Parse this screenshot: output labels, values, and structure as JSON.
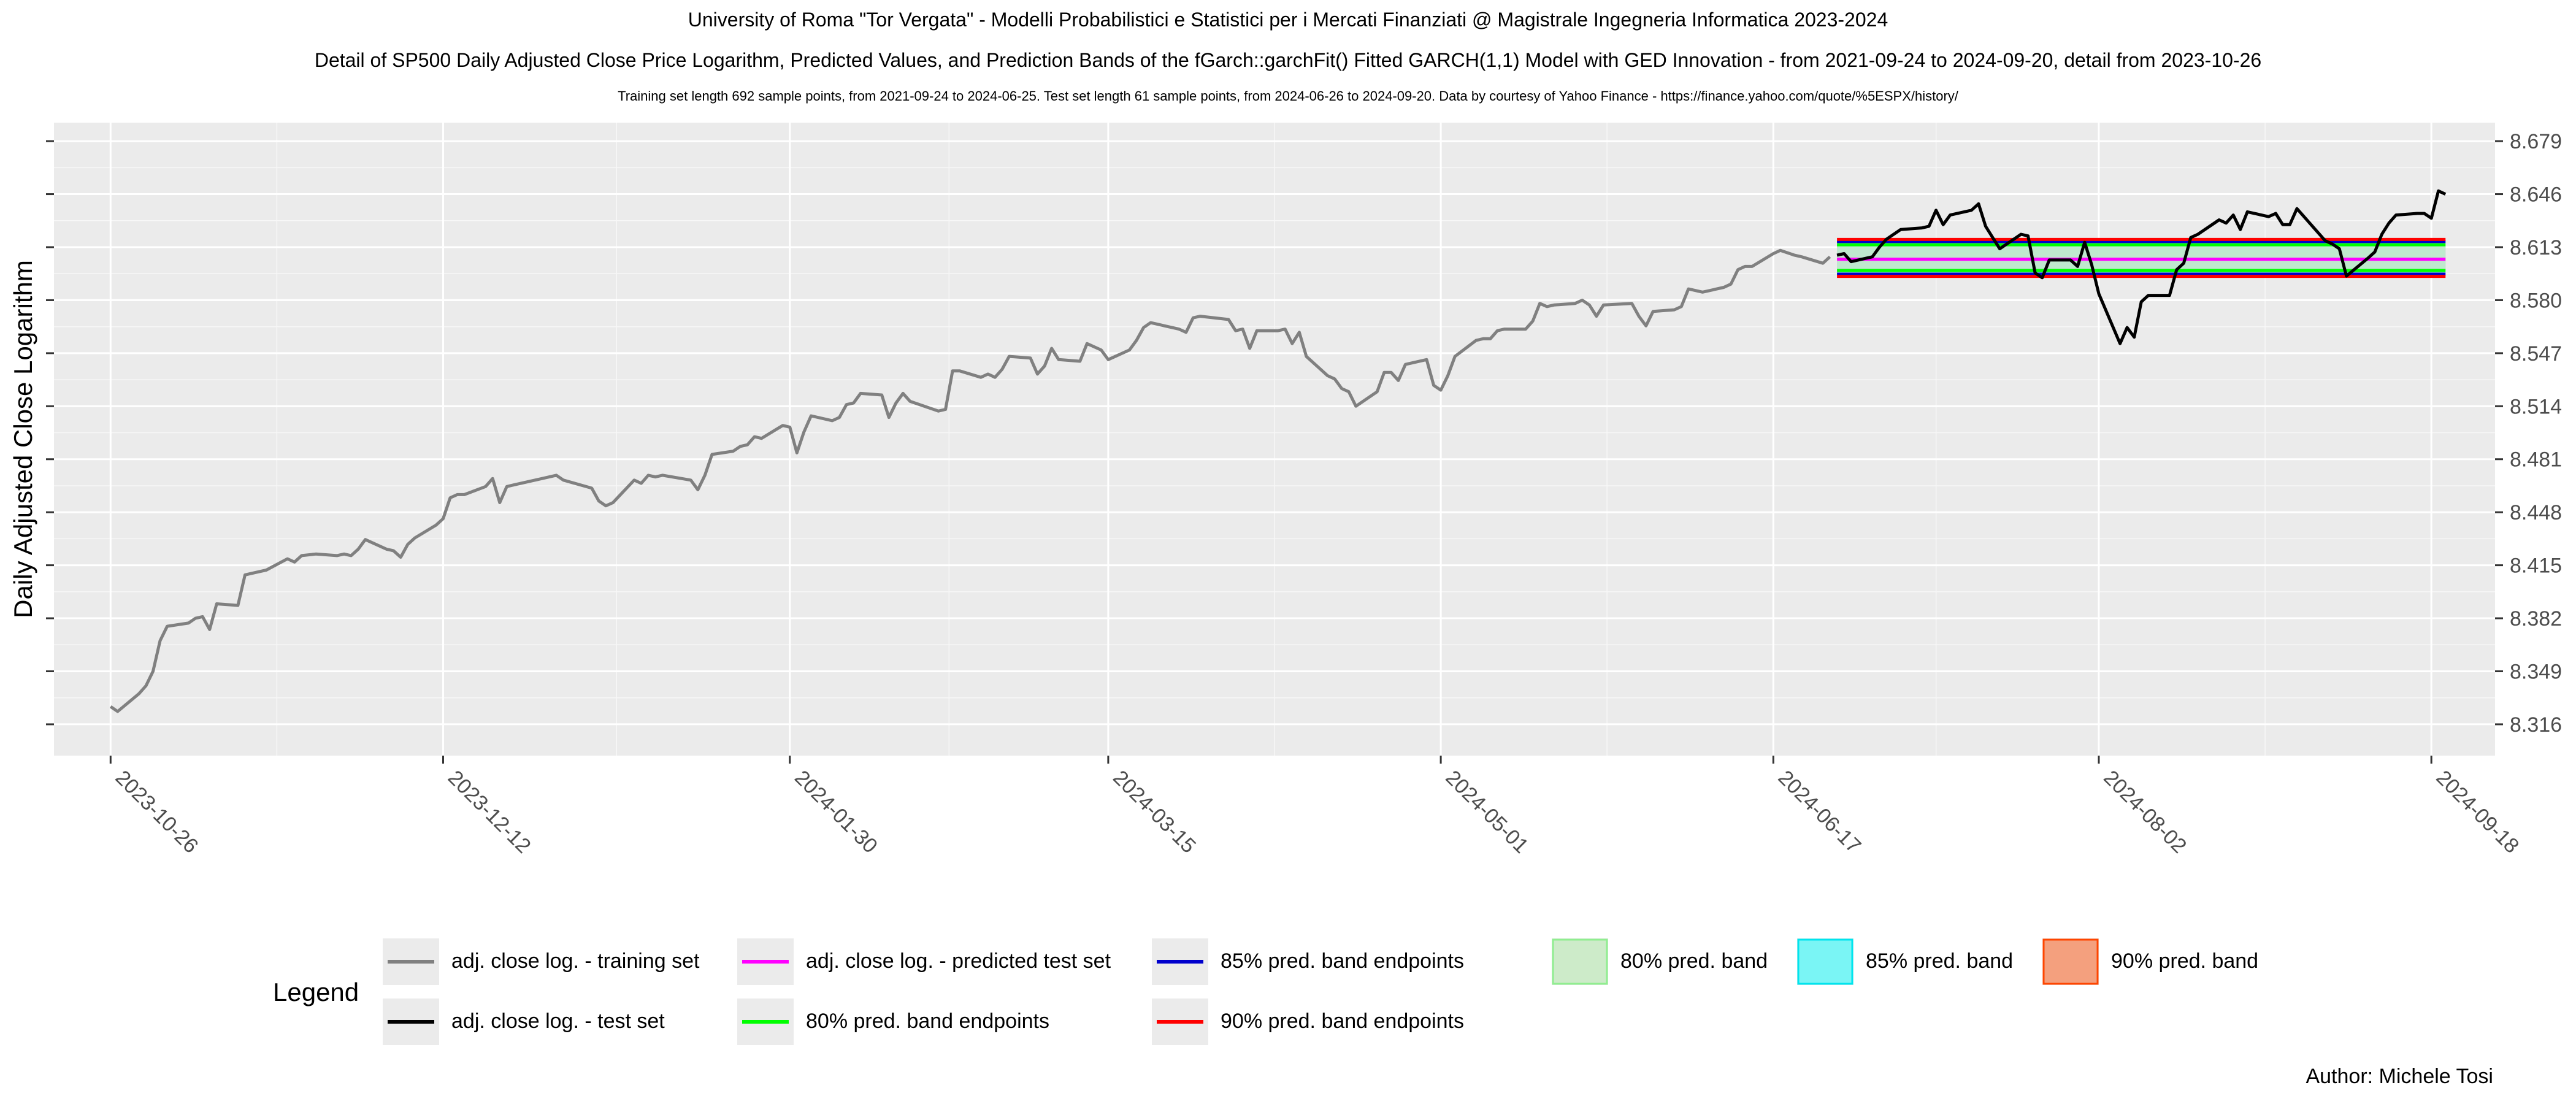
{
  "header": {
    "title1": "University of Roma \"Tor Vergata\" - Modelli Probabilistici e Statistici per i Mercati Finanziati @ Magistrale Ingegneria Informatica 2023-2024",
    "title2": "Detail of SP500 Daily Adjusted Close Price Logarithm, Predicted Values, and Prediction Bands of the fGarch::garchFit() Fitted GARCH(1,1) Model with GED Innovation - from 2021-09-24 to 2024-09-20, detail from 2023-10-26",
    "title3": "Training set length 692 sample points, from 2021-09-24 to 2024-06-25. Test set length 61 sample points, from 2024-06-26 to 2024-09-20. Data by courtesy of Yahoo Finance - https://finance.yahoo.com/quote/%5ESPX/history/"
  },
  "author": "Author: Michele Tosi",
  "chart_data": {
    "type": "line",
    "ylabel": "Daily Adjusted Close Logarithm",
    "xlabel": "",
    "grid": true,
    "x_axis_type": "date",
    "xlim": [
      "2023-10-18",
      "2024-09-27"
    ],
    "ylim": [
      8.2965,
      8.6905
    ],
    "x_ticks": [
      "2023-10-26",
      "2023-12-12",
      "2024-01-30",
      "2024-03-15",
      "2024-05-01",
      "2024-06-17",
      "2024-08-02",
      "2024-09-18"
    ],
    "y_ticks": [
      8.316,
      8.349,
      8.382,
      8.415,
      8.448,
      8.481,
      8.514,
      8.547,
      8.58,
      8.613,
      8.646,
      8.679
    ],
    "y_tick_labels": [
      "8.316",
      "8.349",
      "8.382",
      "8.415",
      "8.448",
      "8.481",
      "8.514",
      "8.547",
      "8.580",
      "8.613",
      "8.646",
      "8.679"
    ],
    "series": [
      {
        "name": "adj. close log. - training set",
        "color": "#808080",
        "points": [
          [
            "2023-10-26",
            8.327
          ],
          [
            "2023-10-27",
            8.324
          ],
          [
            "2023-10-30",
            8.335
          ],
          [
            "2023-10-31",
            8.34
          ],
          [
            "2023-11-01",
            8.349
          ],
          [
            "2023-11-02",
            8.368
          ],
          [
            "2023-11-03",
            8.377
          ],
          [
            "2023-11-06",
            8.379
          ],
          [
            "2023-11-07",
            8.382
          ],
          [
            "2023-11-08",
            8.383
          ],
          [
            "2023-11-09",
            8.375
          ],
          [
            "2023-11-10",
            8.391
          ],
          [
            "2023-11-13",
            8.39
          ],
          [
            "2023-11-14",
            8.409
          ],
          [
            "2023-11-15",
            8.41
          ],
          [
            "2023-11-16",
            8.411
          ],
          [
            "2023-11-17",
            8.412
          ],
          [
            "2023-11-20",
            8.419
          ],
          [
            "2023-11-21",
            8.417
          ],
          [
            "2023-11-22",
            8.421
          ],
          [
            "2023-11-24",
            8.422
          ],
          [
            "2023-11-27",
            8.421
          ],
          [
            "2023-11-28",
            8.422
          ],
          [
            "2023-11-29",
            8.421
          ],
          [
            "2023-11-30",
            8.425
          ],
          [
            "2023-12-01",
            8.431
          ],
          [
            "2023-12-04",
            8.425
          ],
          [
            "2023-12-05",
            8.424
          ],
          [
            "2023-12-06",
            8.42
          ],
          [
            "2023-12-07",
            8.428
          ],
          [
            "2023-12-08",
            8.432
          ],
          [
            "2023-12-11",
            8.44
          ],
          [
            "2023-12-12",
            8.444
          ],
          [
            "2023-12-13",
            8.457
          ],
          [
            "2023-12-14",
            8.459
          ],
          [
            "2023-12-15",
            8.459
          ],
          [
            "2023-12-18",
            8.464
          ],
          [
            "2023-12-19",
            8.469
          ],
          [
            "2023-12-20",
            8.454
          ],
          [
            "2023-12-21",
            8.464
          ],
          [
            "2023-12-22",
            8.465
          ],
          [
            "2023-12-26",
            8.469
          ],
          [
            "2023-12-27",
            8.47
          ],
          [
            "2023-12-28",
            8.471
          ],
          [
            "2023-12-29",
            8.468
          ],
          [
            "2024-01-02",
            8.463
          ],
          [
            "2024-01-03",
            8.455
          ],
          [
            "2024-01-04",
            8.452
          ],
          [
            "2024-01-05",
            8.454
          ],
          [
            "2024-01-08",
            8.468
          ],
          [
            "2024-01-09",
            8.466
          ],
          [
            "2024-01-10",
            8.471
          ],
          [
            "2024-01-11",
            8.47
          ],
          [
            "2024-01-12",
            8.471
          ],
          [
            "2024-01-16",
            8.468
          ],
          [
            "2024-01-17",
            8.462
          ],
          [
            "2024-01-18",
            8.471
          ],
          [
            "2024-01-19",
            8.484
          ],
          [
            "2024-01-22",
            8.486
          ],
          [
            "2024-01-23",
            8.489
          ],
          [
            "2024-01-24",
            8.49
          ],
          [
            "2024-01-25",
            8.495
          ],
          [
            "2024-01-26",
            8.494
          ],
          [
            "2024-01-29",
            8.502
          ],
          [
            "2024-01-30",
            8.501
          ],
          [
            "2024-01-31",
            8.485
          ],
          [
            "2024-02-01",
            8.498
          ],
          [
            "2024-02-02",
            8.508
          ],
          [
            "2024-02-05",
            8.505
          ],
          [
            "2024-02-06",
            8.507
          ],
          [
            "2024-02-07",
            8.515
          ],
          [
            "2024-02-08",
            8.516
          ],
          [
            "2024-02-09",
            8.522
          ],
          [
            "2024-02-12",
            8.521
          ],
          [
            "2024-02-13",
            8.507
          ],
          [
            "2024-02-14",
            8.516
          ],
          [
            "2024-02-15",
            8.522
          ],
          [
            "2024-02-16",
            8.517
          ],
          [
            "2024-02-20",
            8.511
          ],
          [
            "2024-02-21",
            8.512
          ],
          [
            "2024-02-22",
            8.536
          ],
          [
            "2024-02-23",
            8.536
          ],
          [
            "2024-02-26",
            8.532
          ],
          [
            "2024-02-27",
            8.534
          ],
          [
            "2024-02-28",
            8.532
          ],
          [
            "2024-02-29",
            8.537
          ],
          [
            "2024-03-01",
            8.545
          ],
          [
            "2024-03-04",
            8.544
          ],
          [
            "2024-03-05",
            8.534
          ],
          [
            "2024-03-06",
            8.539
          ],
          [
            "2024-03-07",
            8.55
          ],
          [
            "2024-03-08",
            8.543
          ],
          [
            "2024-03-11",
            8.542
          ],
          [
            "2024-03-12",
            8.553
          ],
          [
            "2024-03-13",
            8.551
          ],
          [
            "2024-03-14",
            8.549
          ],
          [
            "2024-03-15",
            8.543
          ],
          [
            "2024-03-18",
            8.549
          ],
          [
            "2024-03-19",
            8.555
          ],
          [
            "2024-03-20",
            8.563
          ],
          [
            "2024-03-21",
            8.566
          ],
          [
            "2024-03-22",
            8.565
          ],
          [
            "2024-03-25",
            8.562
          ],
          [
            "2024-03-26",
            8.56
          ],
          [
            "2024-03-27",
            8.569
          ],
          [
            "2024-03-28",
            8.57
          ],
          [
            "2024-04-01",
            8.568
          ],
          [
            "2024-04-02",
            8.561
          ],
          [
            "2024-04-03",
            8.562
          ],
          [
            "2024-04-04",
            8.55
          ],
          [
            "2024-04-05",
            8.561
          ],
          [
            "2024-04-08",
            8.561
          ],
          [
            "2024-04-09",
            8.562
          ],
          [
            "2024-04-10",
            8.553
          ],
          [
            "2024-04-11",
            8.56
          ],
          [
            "2024-04-12",
            8.545
          ],
          [
            "2024-04-15",
            8.533
          ],
          [
            "2024-04-16",
            8.531
          ],
          [
            "2024-04-17",
            8.525
          ],
          [
            "2024-04-18",
            8.523
          ],
          [
            "2024-04-19",
            8.514
          ],
          [
            "2024-04-22",
            8.523
          ],
          [
            "2024-04-23",
            8.535
          ],
          [
            "2024-04-24",
            8.535
          ],
          [
            "2024-04-25",
            8.53
          ],
          [
            "2024-04-26",
            8.54
          ],
          [
            "2024-04-29",
            8.543
          ],
          [
            "2024-04-30",
            8.527
          ],
          [
            "2024-05-01",
            8.524
          ],
          [
            "2024-05-02",
            8.533
          ],
          [
            "2024-05-03",
            8.545
          ],
          [
            "2024-05-06",
            8.555
          ],
          [
            "2024-05-07",
            8.556
          ],
          [
            "2024-05-08",
            8.556
          ],
          [
            "2024-05-09",
            8.561
          ],
          [
            "2024-05-10",
            8.562
          ],
          [
            "2024-05-13",
            8.562
          ],
          [
            "2024-05-14",
            8.567
          ],
          [
            "2024-05-15",
            8.578
          ],
          [
            "2024-05-16",
            8.576
          ],
          [
            "2024-05-17",
            8.577
          ],
          [
            "2024-05-20",
            8.578
          ],
          [
            "2024-05-21",
            8.58
          ],
          [
            "2024-05-22",
            8.577
          ],
          [
            "2024-05-23",
            8.57
          ],
          [
            "2024-05-24",
            8.577
          ],
          [
            "2024-05-28",
            8.578
          ],
          [
            "2024-05-29",
            8.57
          ],
          [
            "2024-05-30",
            8.564
          ],
          [
            "2024-05-31",
            8.573
          ],
          [
            "2024-06-03",
            8.574
          ],
          [
            "2024-06-04",
            8.576
          ],
          [
            "2024-06-05",
            8.587
          ],
          [
            "2024-06-06",
            8.586
          ],
          [
            "2024-06-07",
            8.585
          ],
          [
            "2024-06-10",
            8.588
          ],
          [
            "2024-06-11",
            8.59
          ],
          [
            "2024-06-12",
            8.599
          ],
          [
            "2024-06-13",
            8.601
          ],
          [
            "2024-06-14",
            8.601
          ],
          [
            "2024-06-17",
            8.609
          ],
          [
            "2024-06-18",
            8.611
          ],
          [
            "2024-06-20",
            8.608
          ],
          [
            "2024-06-21",
            8.607
          ],
          [
            "2024-06-24",
            8.603
          ],
          [
            "2024-06-25",
            8.607
          ]
        ]
      },
      {
        "name": "adj. close log. - test set",
        "color": "#000000",
        "points": [
          [
            "2024-06-26",
            8.608
          ],
          [
            "2024-06-27",
            8.609
          ],
          [
            "2024-06-28",
            8.604
          ],
          [
            "2024-07-01",
            8.607
          ],
          [
            "2024-07-02",
            8.613
          ],
          [
            "2024-07-03",
            8.618
          ],
          [
            "2024-07-05",
            8.624
          ],
          [
            "2024-07-08",
            8.625
          ],
          [
            "2024-07-09",
            8.626
          ],
          [
            "2024-07-10",
            8.636
          ],
          [
            "2024-07-11",
            8.627
          ],
          [
            "2024-07-12",
            8.633
          ],
          [
            "2024-07-15",
            8.636
          ],
          [
            "2024-07-16",
            8.64
          ],
          [
            "2024-07-17",
            8.626
          ],
          [
            "2024-07-18",
            8.619
          ],
          [
            "2024-07-19",
            8.612
          ],
          [
            "2024-07-22",
            8.621
          ],
          [
            "2024-07-23",
            8.62
          ],
          [
            "2024-07-24",
            8.597
          ],
          [
            "2024-07-25",
            8.594
          ],
          [
            "2024-07-26",
            8.605
          ],
          [
            "2024-07-29",
            8.605
          ],
          [
            "2024-07-30",
            8.601
          ],
          [
            "2024-07-31",
            8.616
          ],
          [
            "2024-08-01",
            8.602
          ],
          [
            "2024-08-02",
            8.584
          ],
          [
            "2024-08-05",
            8.553
          ],
          [
            "2024-08-06",
            8.563
          ],
          [
            "2024-08-07",
            8.557
          ],
          [
            "2024-08-08",
            8.579
          ],
          [
            "2024-08-09",
            8.583
          ],
          [
            "2024-08-12",
            8.583
          ],
          [
            "2024-08-13",
            8.599
          ],
          [
            "2024-08-14",
            8.603
          ],
          [
            "2024-08-15",
            8.619
          ],
          [
            "2024-08-16",
            8.621
          ],
          [
            "2024-08-19",
            8.63
          ],
          [
            "2024-08-20",
            8.628
          ],
          [
            "2024-08-21",
            8.633
          ],
          [
            "2024-08-22",
            8.624
          ],
          [
            "2024-08-23",
            8.635
          ],
          [
            "2024-08-26",
            8.632
          ],
          [
            "2024-08-27",
            8.634
          ],
          [
            "2024-08-28",
            8.627
          ],
          [
            "2024-08-29",
            8.627
          ],
          [
            "2024-08-30",
            8.637
          ],
          [
            "2024-09-03",
            8.617
          ],
          [
            "2024-09-04",
            8.615
          ],
          [
            "2024-09-05",
            8.612
          ],
          [
            "2024-09-06",
            8.595
          ],
          [
            "2024-09-09",
            8.606
          ],
          [
            "2024-09-10",
            8.61
          ],
          [
            "2024-09-11",
            8.621
          ],
          [
            "2024-09-12",
            8.628
          ],
          [
            "2024-09-13",
            8.633
          ],
          [
            "2024-09-16",
            8.634
          ],
          [
            "2024-09-17",
            8.634
          ],
          [
            "2024-09-18",
            8.631
          ],
          [
            "2024-09-19",
            8.648
          ],
          [
            "2024-09-20",
            8.646
          ]
        ]
      }
    ],
    "prediction": {
      "start": "2024-06-26",
      "end": "2024-09-20",
      "predicted": 8.6055,
      "bands": [
        {
          "level": "80%",
          "lower": 8.5985,
          "upper": 8.6145
        },
        {
          "level": "85%",
          "lower": 8.5962,
          "upper": 8.6165
        },
        {
          "level": "90%",
          "lower": 8.5948,
          "upper": 8.6178
        }
      ]
    },
    "legend": {
      "title": "Legend",
      "placement": "bottom",
      "items": [
        {
          "label": "adj. close log. - training set",
          "type": "line",
          "color": "#808080"
        },
        {
          "label": "adj. close log. - test set",
          "type": "line",
          "color": "#000000"
        },
        {
          "label": "adj. close log. - predicted test set",
          "type": "line",
          "color": "#ff00ff"
        },
        {
          "label": "80% pred. band endpoints",
          "type": "line",
          "color": "#00ff00"
        },
        {
          "label": "85% pred. band endpoints",
          "type": "line",
          "color": "#0000cd"
        },
        {
          "label": "90% pred. band endpoints",
          "type": "line",
          "color": "#ff0000"
        },
        {
          "label": "80% pred. band",
          "type": "fill",
          "fill": "#cdebc9",
          "stroke": "#90ee90"
        },
        {
          "label": "85% pred. band",
          "type": "fill",
          "fill": "#7af5f5",
          "stroke": "#00e5ee"
        },
        {
          "label": "90% pred. band",
          "type": "fill",
          "fill": "#f4a07e",
          "stroke": "#ff4500"
        }
      ]
    }
  }
}
